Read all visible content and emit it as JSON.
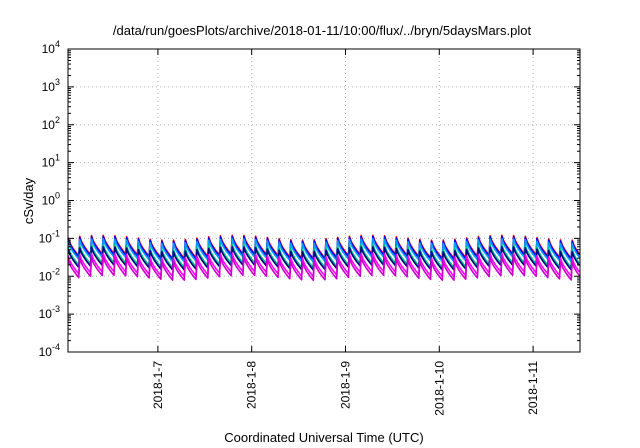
{
  "chart_data": {
    "type": "line",
    "title": "/data/run/goesPlots/archive/2018-01-11/10:00/flux/../bryn/5daysMars.plot",
    "xlabel": "Coordinated Universal Time (UTC)",
    "ylabel": "cSv/day",
    "yscale": "log",
    "ylim": [
      0.0001,
      10000
    ],
    "xlim": [
      "2018-01-06T01:00",
      "2018-01-11T12:00"
    ],
    "grid": true,
    "y_ticks": [
      {
        "base": "10",
        "exp": "-4"
      },
      {
        "base": "10",
        "exp": "-3"
      },
      {
        "base": "10",
        "exp": "-2"
      },
      {
        "base": "10",
        "exp": "-1"
      },
      {
        "base": "10",
        "exp": "0"
      },
      {
        "base": "10",
        "exp": "1"
      },
      {
        "base": "10",
        "exp": "2"
      },
      {
        "base": "10",
        "exp": "3"
      },
      {
        "base": "10",
        "exp": "4"
      }
    ],
    "x_ticks": [
      {
        "t": "2018-01-07T00:00",
        "label": "2018-1-7"
      },
      {
        "t": "2018-01-08T00:00",
        "label": "2018-1-8"
      },
      {
        "t": "2018-01-09T00:00",
        "label": "2018-1-9"
      },
      {
        "t": "2018-01-10T00:00",
        "label": "2018-1-10"
      },
      {
        "t": "2018-01-11T00:00",
        "label": "2018-1-11"
      }
    ],
    "pattern": {
      "cycle_hours": 3,
      "peak_range": [
        0.09,
        0.13
      ],
      "decay_ratio": 0.33
    },
    "series": [
      {
        "color": "#ff0000",
        "peak": 0.105
      },
      {
        "color": "#0000ff",
        "peak": 0.098
      },
      {
        "color": "#00a0ff",
        "peak": 0.085
      },
      {
        "color": "#00c080",
        "peak": 0.06
      },
      {
        "color": "#000080",
        "peak": 0.052
      },
      {
        "color": "#ff00ff",
        "peak": 0.035
      },
      {
        "color": "#cc00cc",
        "peak": 0.028
      }
    ]
  }
}
